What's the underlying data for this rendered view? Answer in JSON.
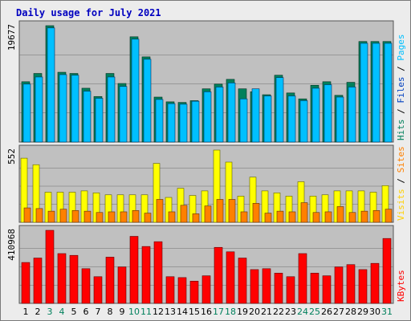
{
  "chart_data": {
    "type": "bar",
    "title": "Daily usage for July 2021",
    "categories": [
      "1",
      "2",
      "3",
      "4",
      "5",
      "6",
      "7",
      "8",
      "9",
      "10",
      "11",
      "12",
      "13",
      "14",
      "15",
      "16",
      "17",
      "18",
      "19",
      "20",
      "21",
      "22",
      "23",
      "24",
      "25",
      "26",
      "27",
      "28",
      "29",
      "30",
      "31"
    ],
    "weekend_days": [
      "3",
      "4",
      "10",
      "11",
      "17",
      "18",
      "24",
      "25",
      "31"
    ],
    "panels": [
      {
        "id": "top",
        "max_label": "19677",
        "ymax": 19677,
        "series": [
          {
            "name": "Hits",
            "color": "#00805c",
            "values": [
              10200,
              11600,
              19677,
              11800,
              11600,
              9100,
              7700,
              11600,
              9900,
              17800,
              14400,
              7600,
              6800,
              6700,
              7000,
              9000,
              9800,
              10600,
              9000,
              8500,
              8000,
              11300,
              8300,
              7300,
              9600,
              10200,
              7900,
              10100,
              17000,
              17000,
              17000
            ]
          },
          {
            "name": "Files",
            "color": "#00c0ff",
            "values": [
              9800,
              11000,
              19300,
              11400,
              11300,
              8600,
              7400,
              11000,
              9400,
              17400,
              14000,
              7200,
              6500,
              6400,
              6900,
              8500,
              9300,
              10000,
              7300,
              9000,
              7800,
              10900,
              7800,
              7000,
              9100,
              9700,
              7600,
              9300,
              16700,
              16700,
              16700
            ]
          },
          {
            "name": "Pages",
            "color": "#00c0ff",
            "values": []
          }
        ],
        "right_labels": [
          {
            "text": "Hits",
            "color": "#00805c"
          },
          {
            "text": " / ",
            "color": "#000000"
          },
          {
            "text": "Files",
            "color": "#0040c0"
          },
          {
            "text": " / ",
            "color": "#000000"
          },
          {
            "text": "Pages",
            "color": "#00c0ff"
          }
        ]
      },
      {
        "id": "middle",
        "max_label": "552",
        "ymax": 552,
        "series": [
          {
            "name": "Visits",
            "color": "#ffff00",
            "values": [
              490,
              440,
              230,
              230,
              230,
              240,
              225,
              210,
              210,
              210,
              210,
              450,
              190,
              260,
              205,
              240,
              552,
              460,
              200,
              345,
              240,
              225,
              200,
              310,
              200,
              210,
              240,
              240,
              240,
              230,
              280
            ]
          },
          {
            "name": "Sites",
            "color": "#ff8000",
            "values": [
              110,
              105,
              85,
              100,
              90,
              85,
              75,
              80,
              80,
              90,
              70,
              175,
              80,
              130,
              65,
              125,
              175,
              175,
              80,
              145,
              70,
              85,
              80,
              150,
              75,
              80,
              120,
              75,
              85,
              90,
              100
            ]
          }
        ],
        "right_labels": [
          {
            "text": "Visits",
            "color": "#ffd000"
          },
          {
            "text": " / ",
            "color": "#000000"
          },
          {
            "text": "Sites",
            "color": "#ff8000"
          }
        ]
      },
      {
        "id": "bottom",
        "max_label": "410968",
        "ymax": 410968,
        "series": [
          {
            "name": "KBytes",
            "color": "#ff0000",
            "values": [
              230000,
              255000,
              410968,
              280000,
              270000,
              195000,
              150000,
              260000,
              205000,
              377000,
              320000,
              347000,
              150000,
              145000,
              125000,
              155000,
              315000,
              290000,
              255000,
              190000,
              195000,
              170000,
              150000,
              280000,
              170000,
              155000,
              205000,
              218000,
              190000,
              225000,
              365000
            ]
          }
        ],
        "right_labels": [
          {
            "text": "KBytes",
            "color": "#ff0000"
          }
        ]
      }
    ],
    "colors": {
      "title": "#0000c0",
      "plot_bg": "#c0c0c0",
      "frame_bg": "#ececec",
      "border": "#7a7a7a",
      "gridline": "#707070",
      "weekday_label": "#000000",
      "weekend_label": "#00805c"
    }
  }
}
